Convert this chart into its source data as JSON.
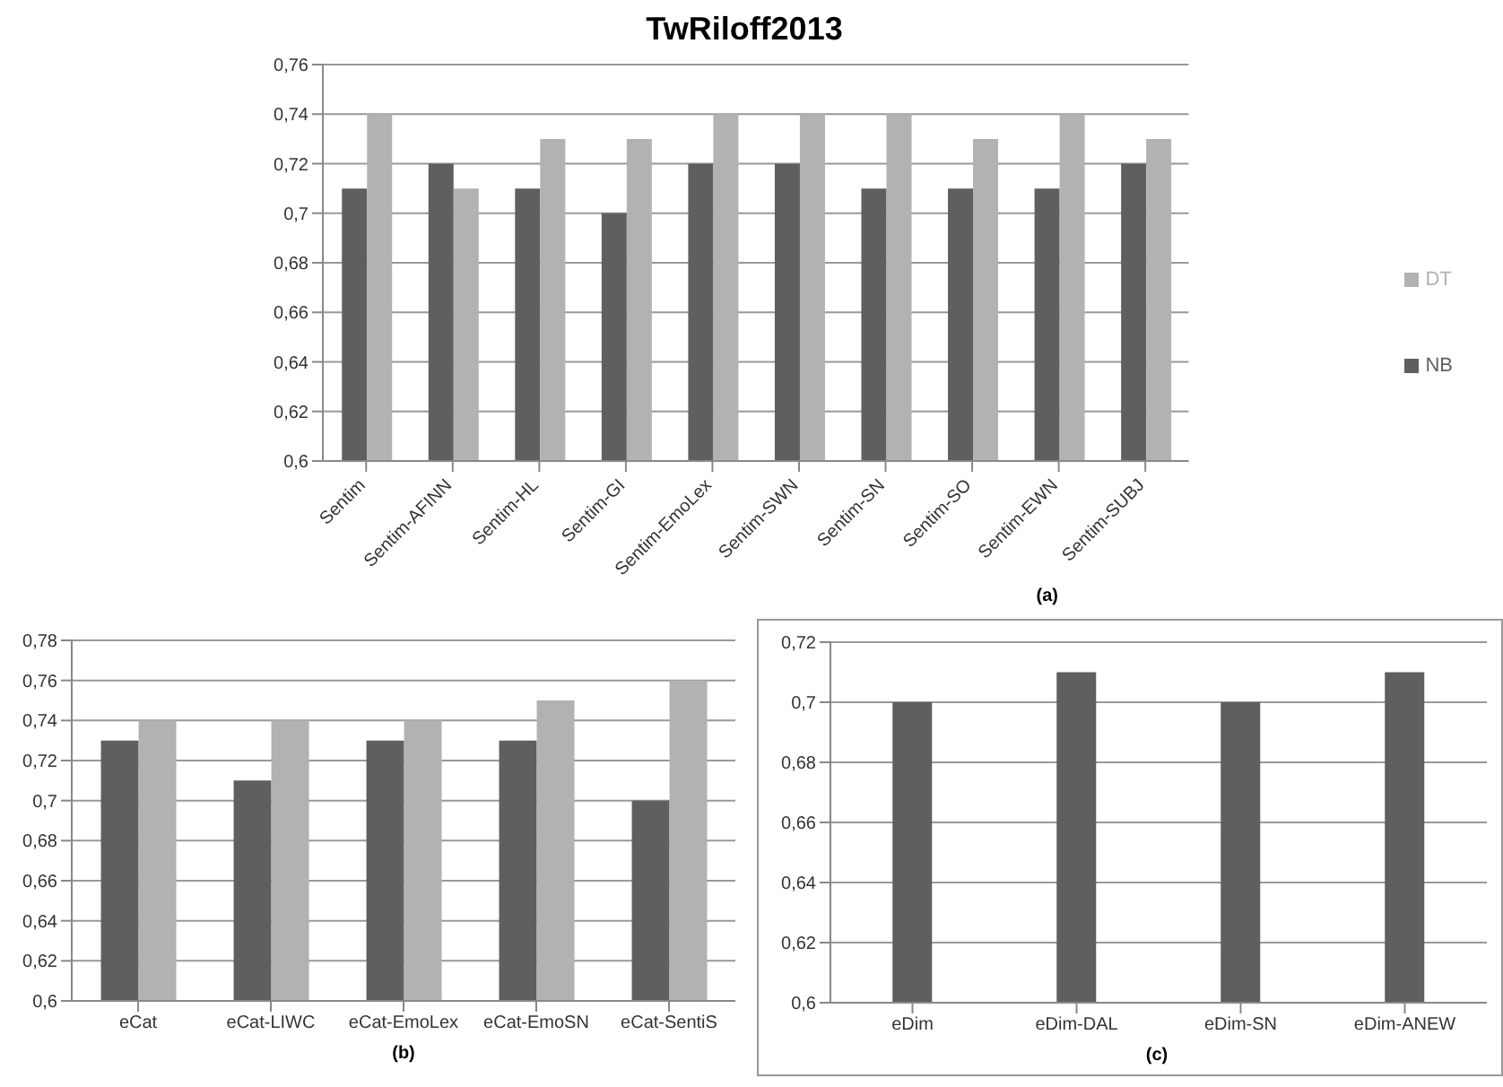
{
  "chart_data": [
    {
      "type": "bar",
      "title": "TwRiloff2013",
      "annotations": [
        "(a)"
      ],
      "categories": [
        "Sentim",
        "Sentim-AFINN",
        "Sentim-HL",
        "Sentim-GI",
        "Sentim-EmoLex",
        "Sentim-SWN",
        "Sentim-SN",
        "Sentim-SO",
        "Sentim-EWN",
        "Sentim-SUBJ"
      ],
      "series": [
        {
          "name": "NB",
          "color": "#5f5f5f",
          "values": [
            0.71,
            0.72,
            0.71,
            0.7,
            0.72,
            0.72,
            0.71,
            0.71,
            0.71,
            0.72
          ]
        },
        {
          "name": "DT",
          "color": "#b2b2b2",
          "values": [
            0.74,
            0.71,
            0.73,
            0.73,
            0.74,
            0.74,
            0.74,
            0.73,
            0.74,
            0.73
          ]
        }
      ],
      "ylim": [
        0.6,
        0.76
      ],
      "yticks": [
        {
          "value": 0.6,
          "label": "0,6"
        },
        {
          "value": 0.62,
          "label": "0,62"
        },
        {
          "value": 0.64,
          "label": "0,64"
        },
        {
          "value": 0.66,
          "label": "0,66"
        },
        {
          "value": 0.68,
          "label": "0,68"
        },
        {
          "value": 0.7,
          "label": "0,7"
        },
        {
          "value": 0.72,
          "label": "0,72"
        },
        {
          "value": 0.74,
          "label": "0,74"
        },
        {
          "value": 0.76,
          "label": "0,76"
        }
      ],
      "grid": "y",
      "legend": "right"
    },
    {
      "type": "bar",
      "annotations": [
        "(b)"
      ],
      "categories": [
        "eCat",
        "eCat-LIWC",
        "eCat-EmoLex",
        "eCat-EmoSN",
        "eCat-SentiS"
      ],
      "series": [
        {
          "color": "#5f5f5f",
          "values": [
            0.73,
            0.71,
            0.73,
            0.73,
            0.7
          ]
        },
        {
          "color": "#b2b2b2",
          "values": [
            0.74,
            0.74,
            0.74,
            0.75,
            0.76
          ]
        }
      ],
      "ylim": [
        0.6,
        0.78
      ],
      "yticks": [
        {
          "value": 0.6,
          "label": "0,6"
        },
        {
          "value": 0.62,
          "label": "0,62"
        },
        {
          "value": 0.64,
          "label": "0,64"
        },
        {
          "value": 0.66,
          "label": "0,66"
        },
        {
          "value": 0.68,
          "label": "0,68"
        },
        {
          "value": 0.7,
          "label": "0,7"
        },
        {
          "value": 0.72,
          "label": "0,72"
        },
        {
          "value": 0.74,
          "label": "0,74"
        },
        {
          "value": 0.76,
          "label": "0,76"
        },
        {
          "value": 0.78,
          "label": "0,78"
        }
      ],
      "grid": "y",
      "legend": false
    },
    {
      "type": "bar",
      "annotations": [
        "(c)"
      ],
      "categories": [
        "eDim",
        "eDim-DAL",
        "eDim-SN",
        "eDim-ANEW"
      ],
      "series": [
        {
          "color": "#5f5f5f",
          "values": [
            0.7,
            0.71,
            0.7,
            0.71
          ]
        }
      ],
      "ylim": [
        0.6,
        0.72
      ],
      "yticks": [
        {
          "value": 0.6,
          "label": "0,6"
        },
        {
          "value": 0.62,
          "label": "0,62"
        },
        {
          "value": 0.64,
          "label": "0,64"
        },
        {
          "value": 0.66,
          "label": "0,66"
        },
        {
          "value": 0.68,
          "label": "0,68"
        },
        {
          "value": 0.7,
          "label": "0,7"
        },
        {
          "value": 0.72,
          "label": "0,72"
        }
      ],
      "grid": "y",
      "legend": false
    }
  ]
}
